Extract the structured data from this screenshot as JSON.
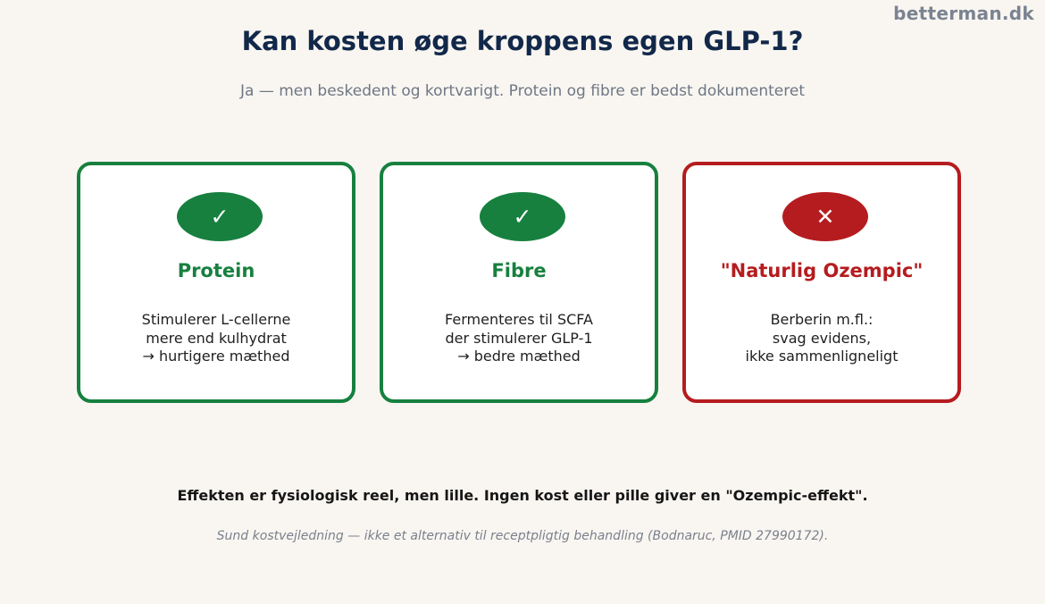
{
  "brand": "betterman.dk",
  "title": "Kan kosten øge kroppens egen GLP-1?",
  "subtitle": "Ja — men beskedent og kortvarigt. Protein og fibre er bedst dokumenteret",
  "cards": [
    {
      "verdict": "positive",
      "icon": "check-icon",
      "symbol": "✓",
      "color": "#17803f",
      "title": "Protein",
      "lines": [
        "Stimulerer L-cellerne",
        "mere end kulhydrat",
        "→ hurtigere mæthed"
      ]
    },
    {
      "verdict": "positive",
      "icon": "check-icon",
      "symbol": "✓",
      "color": "#17803f",
      "title": "Fibre",
      "lines": [
        "Fermenteres til SCFA",
        "der stimulerer GLP-1",
        "→ bedre mæthed"
      ]
    },
    {
      "verdict": "negative",
      "icon": "cross-icon",
      "symbol": "✕",
      "color": "#b51c1f",
      "title": "\"Naturlig Ozempic\"",
      "lines": [
        "Berberin m.fl.:",
        "svag evidens,",
        "ikke sammenligneligt"
      ]
    }
  ],
  "conclusion": "Effekten er fysiologisk reel, men lille. Ingen kost eller pille giver en \"Ozempic-effekt\".",
  "footnote": "Sund kostvejledning — ikke et alternativ til receptpligtig behandling (Bodnaruc, PMID 27990172)."
}
